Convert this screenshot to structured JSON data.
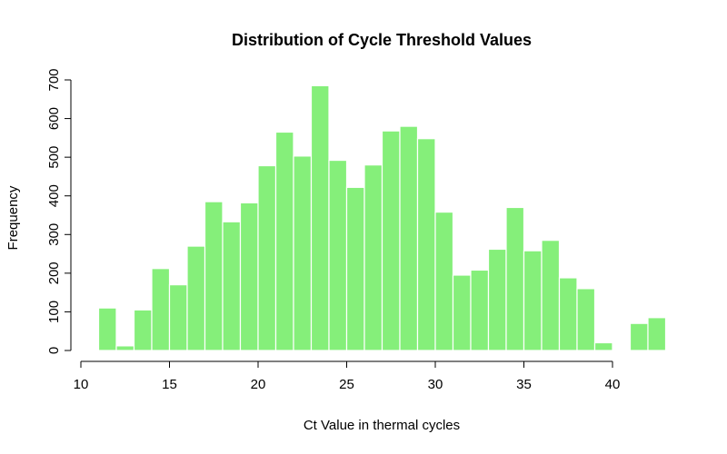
{
  "chart_data": {
    "type": "bar",
    "title": "Distribution of Cycle Threshold Values",
    "xlabel": "Ct Value in thermal cycles",
    "ylabel": "Frequency",
    "bin_width": 1,
    "x": [
      11,
      12,
      13,
      14,
      15,
      16,
      17,
      18,
      19,
      20,
      21,
      22,
      23,
      24,
      25,
      26,
      27,
      28,
      29,
      30,
      31,
      32,
      33,
      34,
      35,
      36,
      37,
      38,
      39,
      40,
      41,
      42
    ],
    "values": [
      110,
      12,
      105,
      212,
      170,
      270,
      385,
      333,
      382,
      478,
      565,
      503,
      685,
      492,
      422,
      480,
      568,
      580,
      548,
      358,
      195,
      208,
      262,
      370,
      258,
      285,
      188,
      160,
      20,
      0,
      70,
      85
    ],
    "xlim": [
      10,
      43
    ],
    "ylim": [
      0,
      700
    ],
    "x_ticks": [
      10,
      15,
      20,
      25,
      30,
      35,
      40
    ],
    "y_ticks": [
      0,
      100,
      200,
      300,
      400,
      500,
      600,
      700
    ],
    "bar_color": "#85ef7a",
    "bar_border_color": "#ffffff",
    "grid": false,
    "legend": "none"
  }
}
